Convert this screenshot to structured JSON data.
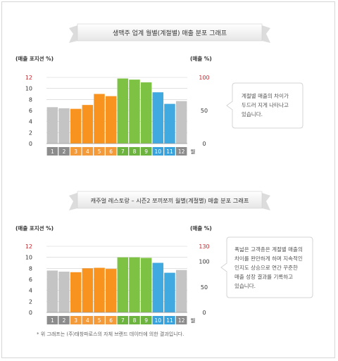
{
  "colors": {
    "gray": "#c4c4c4",
    "orange": "#f7931e",
    "green": "#7dc242",
    "blue": "#3fa9e0",
    "red_tick": "#c1272d",
    "month_orange": "#f39a3a",
    "month_gray": "#8c8c8c",
    "month_green": "#6db33f",
    "month_blue": "#38a2dc"
  },
  "footnote": "* 위 그래프는 (주)태창파로스의 자체 브랜드 데이터에 의한 결과입니다.",
  "chart_data": [
    {
      "type": "bar",
      "title": "생맥주 업계 월별(계절별) 매출 분포 그래프",
      "ylabel": "(매출 포지션 %)",
      "y2label": "(매출 %)",
      "xlabel": "월",
      "categories": [
        "1",
        "2",
        "3",
        "4",
        "5",
        "6",
        "7",
        "8",
        "9",
        "10",
        "11",
        "12"
      ],
      "values": [
        6.6,
        6.4,
        6.3,
        7.0,
        9.0,
        8.6,
        11.8,
        11.6,
        11.1,
        9.3,
        7.2,
        7.7
      ],
      "bar_colors": [
        "gray",
        "gray",
        "orange",
        "orange",
        "orange",
        "orange",
        "green",
        "green",
        "green",
        "blue",
        "blue",
        "gray"
      ],
      "ylim": [
        0,
        12
      ],
      "yticks": [
        "0",
        "2",
        "4",
        "6",
        "8",
        "10",
        "12"
      ],
      "y2ticks": [
        "0",
        "50",
        "100"
      ],
      "note": [
        "계절별 매출의 차이가",
        "두드러 지게 나타나고",
        "있습니다."
      ]
    },
    {
      "type": "bar",
      "title": "캐주얼 레스토랑 – 시즌2 쪼끼쪼끼 월별(계절별) 매출 분포 그래프",
      "ylabel": "(매출 포지션 %)",
      "y2label": "(매출 %)",
      "xlabel": "월",
      "categories": [
        "1",
        "2",
        "3",
        "4",
        "5",
        "6",
        "7",
        "8",
        "9",
        "10",
        "11",
        "12"
      ],
      "values": [
        7.6,
        7.4,
        7.3,
        8.0,
        8.1,
        7.9,
        10.0,
        10.0,
        9.9,
        9.0,
        7.2,
        7.7
      ],
      "bar_colors": [
        "gray",
        "gray",
        "orange",
        "orange",
        "orange",
        "orange",
        "green",
        "green",
        "green",
        "blue",
        "blue",
        "gray"
      ],
      "ylim": [
        0,
        12
      ],
      "yticks": [
        "0",
        "2",
        "4",
        "6",
        "8",
        "10",
        "12"
      ],
      "y2ticks": [
        "0",
        "50",
        "100",
        "130"
      ],
      "note": [
        "폭넓은 고객층은 계절별 매출의",
        "차이를 완만하게 하며 지속적인",
        "인지도 상승으로 연간 꾸준한",
        "매출 성장 결과를 기록하고",
        "있습니다."
      ]
    }
  ]
}
